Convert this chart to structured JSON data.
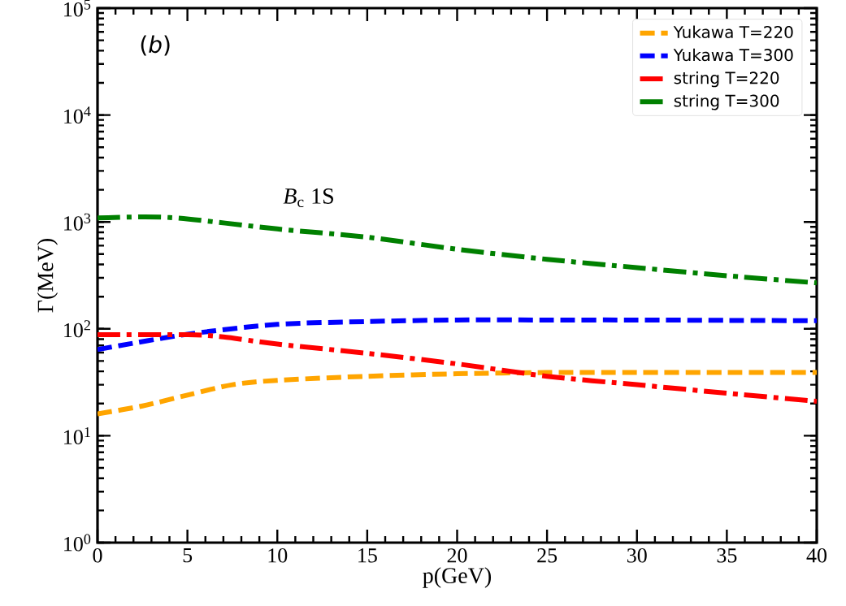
{
  "chart_data": {
    "type": "line",
    "xlabel": "p(GeV)",
    "ylabel": "Γ(MeV)",
    "annotations": [
      "(*b*)",
      "*B*$_{c}$ 1S"
    ],
    "xlim": [
      0,
      40
    ],
    "xticks": [
      0,
      5,
      10,
      15,
      20,
      25,
      30,
      35,
      40
    ],
    "ylim": [
      1,
      100000
    ],
    "yticks": [
      {
        "value": 1,
        "label": "10$^{0}$"
      },
      {
        "value": 10,
        "label": "10$^{1}$"
      },
      {
        "value": 100,
        "label": "10$^{2}$"
      },
      {
        "value": 1000,
        "label": "10$^{3}$"
      },
      {
        "value": 10000,
        "label": "10$^{4}$"
      },
      {
        "value": 100000,
        "label": "10$^{5}$"
      }
    ],
    "log": "y",
    "grid": false,
    "legend": "top right",
    "marker": "none",
    "series": [
      {
        "name": "Yukawa T=220",
        "color": "#ffa500",
        "line_style": "dashed",
        "x": [
          0,
          2.5,
          5,
          7.5,
          10,
          15,
          20,
          25,
          30,
          35,
          40
        ],
        "values": [
          16,
          19,
          24,
          30,
          33,
          36,
          38,
          39,
          39,
          39,
          39
        ]
      },
      {
        "name": "Yukawa T=300",
        "color": "#0000ff",
        "line_style": "dashed",
        "x": [
          0,
          5,
          10,
          15,
          20,
          25,
          30,
          35,
          40
        ],
        "values": [
          64,
          89,
          110,
          117,
          121,
          121,
          121,
          120,
          119
        ]
      },
      {
        "name": "string T=220",
        "color": "#ff0000",
        "line_style": "dashdot",
        "x": [
          0,
          5,
          7,
          10,
          15,
          20,
          25,
          30,
          35,
          40
        ],
        "values": [
          88,
          88,
          84,
          72,
          59,
          47,
          36,
          30,
          25,
          21
        ]
      },
      {
        "name": "string T=300",
        "color": "#008000",
        "line_style": "dashdot",
        "x": [
          0,
          4,
          10,
          15,
          20,
          25,
          30,
          35,
          40
        ],
        "values": [
          1090,
          1100,
          860,
          720,
          555,
          447,
          374,
          314,
          269
        ]
      }
    ]
  }
}
